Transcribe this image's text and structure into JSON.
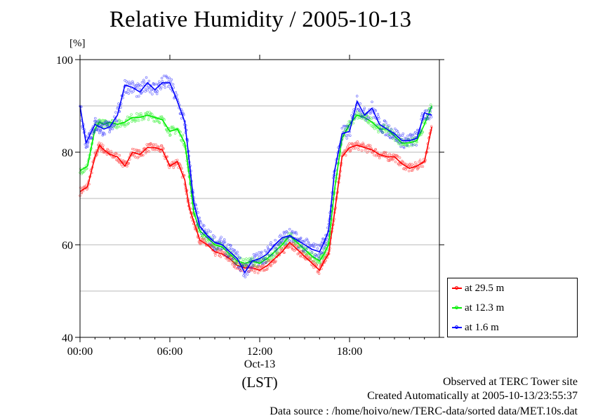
{
  "chart_data": {
    "type": "line",
    "title": "Relative Humidity / 2005-10-13",
    "ylabel": "[%]",
    "ylim": [
      40,
      100
    ],
    "xlim": [
      "00:00",
      "24:00"
    ],
    "y_ticks": [
      "40",
      "60",
      "80",
      "100"
    ],
    "y_grid": [
      50,
      60,
      70,
      80,
      90
    ],
    "x_ticks": [
      "00:00",
      "06:00",
      "12:00",
      "18:00"
    ],
    "x_sub_label": "Oct-13",
    "x_tz_label": "(LST)",
    "grid": true,
    "legend_position": "bottom-right outside",
    "series": [
      {
        "name": "at 29.5 m",
        "color": "#ff0000",
        "x": [
          0,
          0.5,
          1,
          1.3,
          1.6,
          2,
          2.5,
          3,
          3.5,
          4,
          4.5,
          5,
          5.5,
          6,
          6.5,
          7,
          7.3,
          7.6,
          8,
          8.5,
          9,
          9.5,
          10,
          10.5,
          11,
          11.5,
          12,
          12.5,
          13,
          13.5,
          14,
          14.5,
          15,
          15.5,
          16,
          16.3,
          16.6,
          17,
          17.5,
          18,
          18.5,
          19,
          19.5,
          20,
          20.5,
          21,
          21.5,
          22,
          22.5,
          23,
          23.5
        ],
        "y": [
          71.5,
          72.5,
          79,
          81.5,
          80.5,
          79.5,
          79,
          77,
          80,
          79.5,
          81,
          81,
          80.5,
          77,
          78,
          74,
          68,
          65,
          61,
          60,
          58.5,
          58,
          57,
          55.5,
          55,
          55,
          54.5,
          55.5,
          57,
          58.5,
          60.5,
          59,
          57.5,
          56,
          54.5,
          56.5,
          58,
          67,
          79,
          81,
          81.5,
          81,
          80.5,
          79.5,
          79,
          79,
          77.5,
          76.5,
          77,
          78,
          85.5
        ]
      },
      {
        "name": "at 12.3 m",
        "color": "#00ee00",
        "x": [
          0,
          0.5,
          1,
          1.3,
          1.6,
          2,
          2.5,
          3,
          3.5,
          4,
          4.5,
          5,
          5.5,
          6,
          6.5,
          7,
          7.3,
          7.6,
          8,
          8.5,
          9,
          9.5,
          10,
          10.5,
          11,
          11.5,
          12,
          12.5,
          13,
          13.5,
          14,
          14.5,
          15,
          15.5,
          16,
          16.3,
          16.6,
          17,
          17.5,
          18,
          18.5,
          19,
          19.5,
          20,
          20.5,
          21,
          21.5,
          22,
          22.5,
          23,
          23.5
        ],
        "y": [
          76,
          77,
          85,
          86.5,
          86,
          86.5,
          86,
          86.5,
          87.5,
          87.5,
          88,
          87.5,
          87,
          84.5,
          85,
          82,
          75,
          67,
          63,
          61.5,
          60,
          59.5,
          58,
          56.5,
          56,
          56.5,
          56,
          57,
          58.5,
          60,
          62,
          60.5,
          59,
          57.5,
          56.5,
          58,
          60,
          72,
          83,
          86,
          88,
          87.5,
          86.5,
          85,
          85,
          83.5,
          82,
          82,
          82.5,
          86,
          90
        ]
      },
      {
        "name": "at 1.6 m",
        "color": "#0000ff",
        "x": [
          0,
          0.4,
          0.7,
          1,
          1.3,
          1.6,
          2,
          2.5,
          3,
          3.5,
          4,
          4.5,
          5,
          5.5,
          6,
          6.5,
          7,
          7.3,
          7.6,
          8,
          8.5,
          9,
          9.5,
          10,
          10.5,
          11,
          11.5,
          12,
          12.5,
          13,
          13.5,
          14,
          14.5,
          15,
          15.5,
          16,
          16.3,
          16.6,
          17,
          17.5,
          18,
          18.5,
          19,
          19.5,
          20,
          20.5,
          21,
          21.5,
          22,
          22.5,
          23,
          23.5
        ],
        "y": [
          90,
          82,
          84,
          86,
          85.5,
          85,
          85.5,
          88,
          94.5,
          94,
          93,
          95,
          93.5,
          95,
          95,
          91,
          86.5,
          78,
          69,
          64,
          62,
          60.5,
          60,
          58.5,
          57,
          54,
          56.5,
          57,
          58,
          60,
          61.5,
          62,
          61,
          60,
          59,
          58.5,
          60.5,
          63,
          76,
          84,
          84.5,
          91,
          88,
          89.5,
          86,
          85,
          84,
          82.5,
          82.5,
          83,
          88.5,
          88
        ]
      }
    ]
  },
  "legend": [
    "at 29.5 m",
    "at 12.3 m",
    "at 1.6 m"
  ],
  "footer": {
    "line1": "Observed at TERC Tower site",
    "line2": "Created Automatically at 2005-10-13/23:55:37",
    "line3": "Data source : /home/hoivo/new/TERC-data/sorted  data/MET.10s.dat"
  }
}
